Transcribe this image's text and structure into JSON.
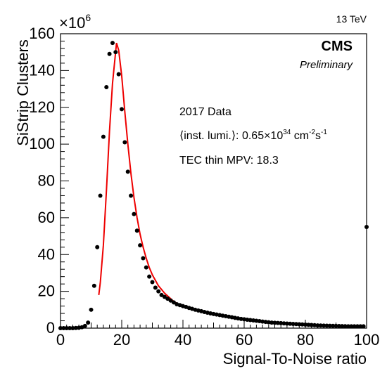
{
  "chart_data": {
    "type": "scatter",
    "xlabel": "Signal-To-Noise ratio",
    "ylabel": "SiStrip Clusters",
    "y_multiplier_base": "×10",
    "y_multiplier_exp": "6",
    "energy_label": "13 TeV",
    "experiment": "CMS",
    "status": "Preliminary",
    "annotations": {
      "dataset": "2017 Data",
      "lumi_prefix": "⟨inst. lumi.⟩: 0.65×10",
      "lumi_exp1": "34",
      "lumi_unit": " cm",
      "lumi_exp2": "-2",
      "lumi_s": "s",
      "lumi_exp3": "-1",
      "mpv": "TEC thin MPV: 18.3"
    },
    "xlim": [
      0,
      100
    ],
    "ylim": [
      0,
      160
    ],
    "xticks": [
      0,
      20,
      40,
      60,
      80,
      100
    ],
    "yticks": [
      0,
      20,
      40,
      60,
      80,
      100,
      120,
      140,
      160
    ],
    "legend": "none",
    "grid": false,
    "series": [
      {
        "name": "",
        "kind": "markers",
        "color": "#000000",
        "x": [
          0,
          1,
          2,
          3,
          4,
          5,
          6,
          7,
          8,
          9,
          10,
          11,
          12,
          13,
          14,
          15,
          16,
          17,
          18,
          19,
          20,
          21,
          22,
          23,
          24,
          25,
          26,
          27,
          28,
          29,
          30,
          31,
          32,
          33,
          34,
          35,
          36,
          37,
          38,
          39,
          40,
          41,
          42,
          43,
          44,
          45,
          46,
          47,
          48,
          49,
          50,
          51,
          52,
          53,
          54,
          55,
          56,
          57,
          58,
          59,
          60,
          61,
          62,
          63,
          64,
          65,
          66,
          67,
          68,
          69,
          70,
          71,
          72,
          73,
          74,
          75,
          76,
          77,
          78,
          79,
          80,
          81,
          82,
          83,
          84,
          85,
          86,
          87,
          88,
          89,
          90,
          91,
          92,
          93,
          94,
          95,
          96,
          97,
          98,
          99,
          100
        ],
        "y": [
          0,
          0,
          0,
          0,
          0,
          0.1,
          0.2,
          0.5,
          1.2,
          3,
          10,
          23,
          44,
          72,
          104,
          131,
          149,
          155,
          150,
          138,
          119,
          101,
          85,
          72,
          62,
          53,
          45,
          38,
          33,
          28,
          25,
          22,
          20,
          18,
          17,
          16,
          15,
          14,
          13,
          12.5,
          12,
          11.5,
          11,
          10.5,
          10,
          9.6,
          9.2,
          8.8,
          8.4,
          8,
          7.7,
          7.4,
          7.1,
          6.8,
          6.5,
          6.2,
          5.9,
          5.6,
          5.3,
          5,
          4.8,
          4.6,
          4.4,
          4.2,
          4,
          3.8,
          3.6,
          3.4,
          3.2,
          3,
          2.9,
          2.8,
          2.7,
          2.6,
          2.5,
          2.4,
          2.3,
          2.2,
          2.1,
          2,
          1.9,
          1.8,
          1.7,
          1.6,
          1.5,
          1.45,
          1.4,
          1.35,
          1.3,
          1.25,
          1.2,
          1.15,
          1.1,
          1.05,
          1,
          1,
          1,
          1,
          1,
          1,
          55
        ]
      },
      {
        "name": "",
        "kind": "fit",
        "color": "#ee0000",
        "x": [
          12.5,
          13,
          14,
          15,
          16,
          17,
          18,
          18.3,
          19,
          20,
          21,
          22,
          23,
          24,
          25,
          26,
          27,
          28,
          29,
          30,
          31,
          32,
          33,
          34,
          35,
          36,
          37,
          38,
          39,
          40
        ],
        "y": [
          18,
          25,
          45,
          75,
          107,
          133,
          150,
          155,
          151,
          137,
          118,
          100,
          84,
          71,
          60,
          51,
          44,
          38,
          33,
          29,
          26,
          23,
          21,
          19,
          17.5,
          16,
          14.5,
          13.5,
          12.5,
          11.5
        ]
      }
    ]
  }
}
